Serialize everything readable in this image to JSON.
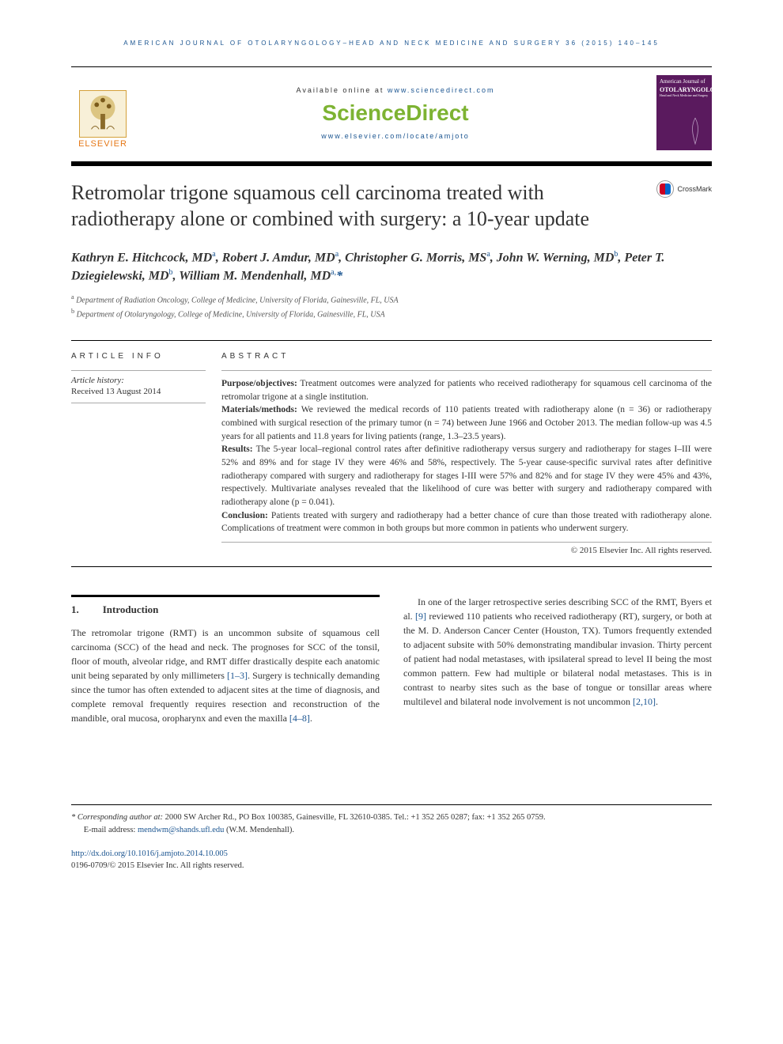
{
  "running_head": "AMERICAN JOURNAL OF OTOLARYNGOLOGY–HEAD AND NECK MEDICINE AND SURGERY 36 (2015) 140–145",
  "header": {
    "available_prefix": "Available online at ",
    "available_url": "www.sciencedirect.com",
    "sciencedirect": "ScienceDirect",
    "locate_url": "www.elsevier.com/locate/amjoto",
    "elsevier": "ELSEVIER",
    "journal_cover": {
      "line1": "American Journal of",
      "line2": "OTOLARYNGOLOGY",
      "line3": "Head and Neck Medicine and Surgery"
    }
  },
  "crossmark": "CrossMark",
  "title": "Retromolar trigone squamous cell carcinoma treated with radiotherapy alone or combined with surgery: a 10-year update",
  "authors_html": "Kathryn E. Hitchcock, MD<sup>a</sup>, Robert J. Amdur, MD<sup>a</sup>, Christopher G. Morris, MS<sup>a</sup>, John W. Werning, MD<sup>b</sup>, Peter T. Dziegielewski, MD<sup>b</sup>, William M. Mendenhall, MD<sup>a,</sup><span class='star'>*</span>",
  "affiliations": [
    {
      "sup": "a",
      "text": "Department of Radiation Oncology, College of Medicine, University of Florida, Gainesville, FL, USA"
    },
    {
      "sup": "b",
      "text": "Department of Otolaryngology, College of Medicine, University of Florida, Gainesville, FL, USA"
    }
  ],
  "article_info": {
    "heading": "ARTICLE INFO",
    "history_label": "Article history:",
    "received": "Received 13 August 2014"
  },
  "abstract": {
    "heading": "ABSTRACT",
    "sections": [
      {
        "label": "Purpose/objectives:",
        "text": " Treatment outcomes were analyzed for patients who received radiotherapy for squamous cell carcinoma of the retromolar trigone at a single institution."
      },
      {
        "label": "Materials/methods:",
        "text": " We reviewed the medical records of 110 patients treated with radiotherapy alone (n = 36) or radiotherapy combined with surgical resection of the primary tumor (n = 74) between June 1966 and October 2013. The median follow-up was 4.5 years for all patients and 11.8 years for living patients (range, 1.3–23.5 years)."
      },
      {
        "label": "Results:",
        "text": " The 5-year local–regional control rates after definitive radiotherapy versus surgery and radiotherapy for stages I–III were 52% and 89% and for stage IV they were 46% and 58%, respectively. The 5-year cause-specific survival rates after definitive radiotherapy compared with surgery and radiotherapy for stages I-III were 57% and 82% and for stage IV they were 45% and 43%, respectively. Multivariate analyses revealed that the likelihood of cure was better with surgery and radiotherapy compared with radiotherapy alone (p = 0.041)."
      },
      {
        "label": "Conclusion:",
        "text": " Patients treated with surgery and radiotherapy had a better chance of cure than those treated with radiotherapy alone. Complications of treatment were common in both groups but more common in patients who underwent surgery."
      }
    ],
    "copyright": "© 2015 Elsevier Inc. All rights reserved."
  },
  "section1": {
    "num": "1.",
    "title": "Introduction",
    "col1_html": "The retromolar trigone (RMT) is an uncommon subsite of squamous cell carcinoma (SCC) of the head and neck. The prognoses for SCC of the tonsil, floor of mouth, alveolar ridge, and RMT differ drastically despite each anatomic unit being separated by only millimeters <a href='#' class='cite'>[1–3]</a>. Surgery is technically demanding since the tumor has often extended to adjacent sites at the time of diagnosis, and complete removal frequently requires resection and reconstruction of the mandible, oral mucosa, oropharynx and even the maxilla <a href='#' class='cite'>[4–8]</a>.",
    "col2_html": "In one of the larger retrospective series describing SCC of the RMT, Byers et al. <a href='#' class='cite'>[9]</a> reviewed 110 patients who received radiotherapy (RT), surgery, or both at the M. D. Anderson Cancer Center (Houston, TX). Tumors frequently extended to adjacent subsite with 50% demonstrating mandibular invasion. Thirty percent of patient had nodal metastases, with ipsilateral spread to level II being the most common pattern. Few had multiple or bilateral nodal metastases. This is in contrast to nearby sites such as the base of tongue or tonsillar areas where multilevel and bilateral node involvement is not uncommon <a href='#' class='cite'>[2,10]</a>."
  },
  "footnotes": {
    "corr_label": "* Corresponding author at:",
    "corr_text": " 2000 SW Archer Rd., PO Box 100385, Gainesville, FL 32610-0385. Tel.: +1 352 265 0287; fax: +1 352 265 0759.",
    "email_label": "E-mail address: ",
    "email": "mendwm@shands.ufl.edu",
    "email_suffix": " (W.M. Mendenhall).",
    "doi": "http://dx.doi.org/10.1016/j.amjoto.2014.10.005",
    "issn_line": "0196-0709/© 2015 Elsevier Inc. All rights reserved."
  },
  "colors": {
    "link": "#1a5490",
    "scidir": "#7db332",
    "elsevier_orange": "#e67817",
    "cover_bg": "#5a1a5e"
  }
}
